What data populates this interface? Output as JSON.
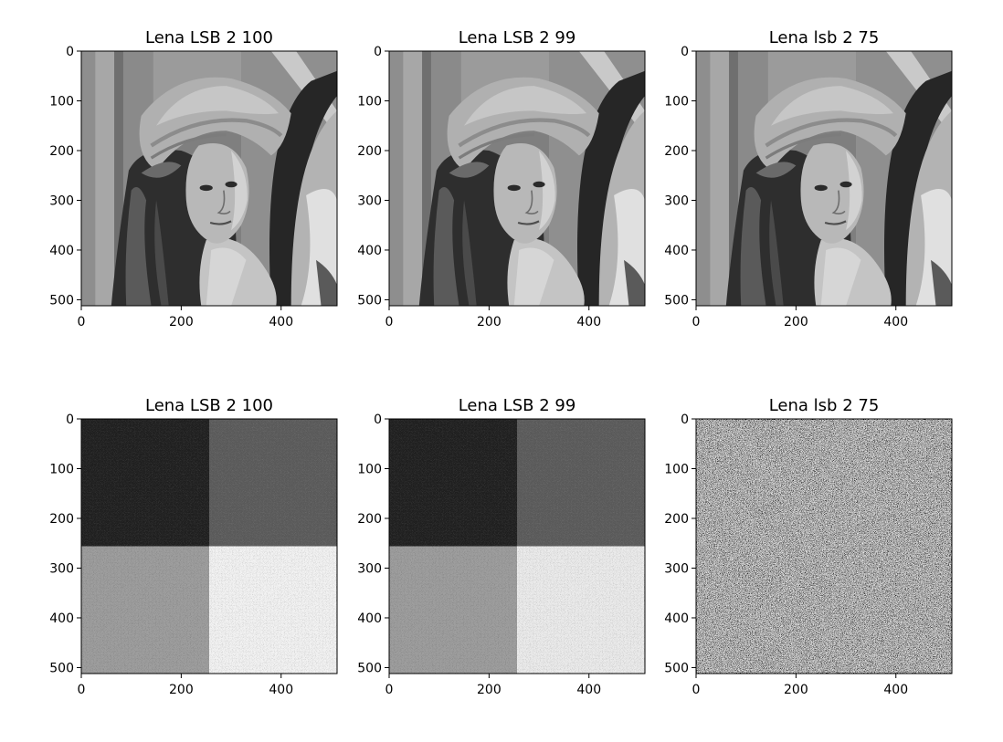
{
  "chart_data": [
    {
      "type": "heatmap",
      "title": "Lena LSB 2 100",
      "content": "grayscale image: Lena portrait (stego image)",
      "x_ticks": [
        0,
        200,
        400
      ],
      "y_ticks": [
        0,
        100,
        200,
        300,
        400,
        500
      ],
      "xlim": [
        0,
        512
      ],
      "ylim": [
        512,
        0
      ],
      "colormap": "gray"
    },
    {
      "type": "heatmap",
      "title": "Lena LSB 2 99",
      "content": "grayscale image: Lena portrait (stego image)",
      "x_ticks": [
        0,
        200,
        400
      ],
      "y_ticks": [
        0,
        100,
        200,
        300,
        400,
        500
      ],
      "xlim": [
        0,
        512
      ],
      "ylim": [
        512,
        0
      ],
      "colormap": "gray"
    },
    {
      "type": "heatmap",
      "title": "Lena lsb 2 75",
      "content": "grayscale image: Lena portrait (stego image)",
      "x_ticks": [
        0,
        200,
        400
      ],
      "y_ticks": [
        0,
        100,
        200,
        300,
        400,
        500
      ],
      "xlim": [
        0,
        512
      ],
      "ylim": [
        512,
        0
      ],
      "colormap": "gray"
    },
    {
      "type": "heatmap",
      "title": "Lena LSB 2 100",
      "content": "noise image: 2x2 quadrants of increasing brightness",
      "quadrant_levels": [
        0.12,
        0.35,
        0.62,
        0.95
      ],
      "x_ticks": [
        0,
        200,
        400
      ],
      "y_ticks": [
        0,
        100,
        200,
        300,
        400,
        500
      ],
      "xlim": [
        0,
        512
      ],
      "ylim": [
        512,
        0
      ],
      "colormap": "gray"
    },
    {
      "type": "heatmap",
      "title": "Lena LSB 2 99",
      "content": "noise image: 2x2 quadrants of increasing brightness",
      "quadrant_levels": [
        0.12,
        0.35,
        0.62,
        0.92
      ],
      "x_ticks": [
        0,
        200,
        400
      ],
      "y_ticks": [
        0,
        100,
        200,
        300,
        400,
        500
      ],
      "xlim": [
        0,
        512
      ],
      "ylim": [
        512,
        0
      ],
      "colormap": "gray"
    },
    {
      "type": "heatmap",
      "title": "Lena lsb 2 75",
      "content": "noise image: uniform random salt-and-pepper texture",
      "x_ticks": [
        0,
        200,
        400
      ],
      "y_ticks": [
        0,
        100,
        200,
        300,
        400,
        500
      ],
      "xlim": [
        0,
        512
      ],
      "ylim": [
        512,
        0
      ],
      "colormap": "gray"
    }
  ]
}
